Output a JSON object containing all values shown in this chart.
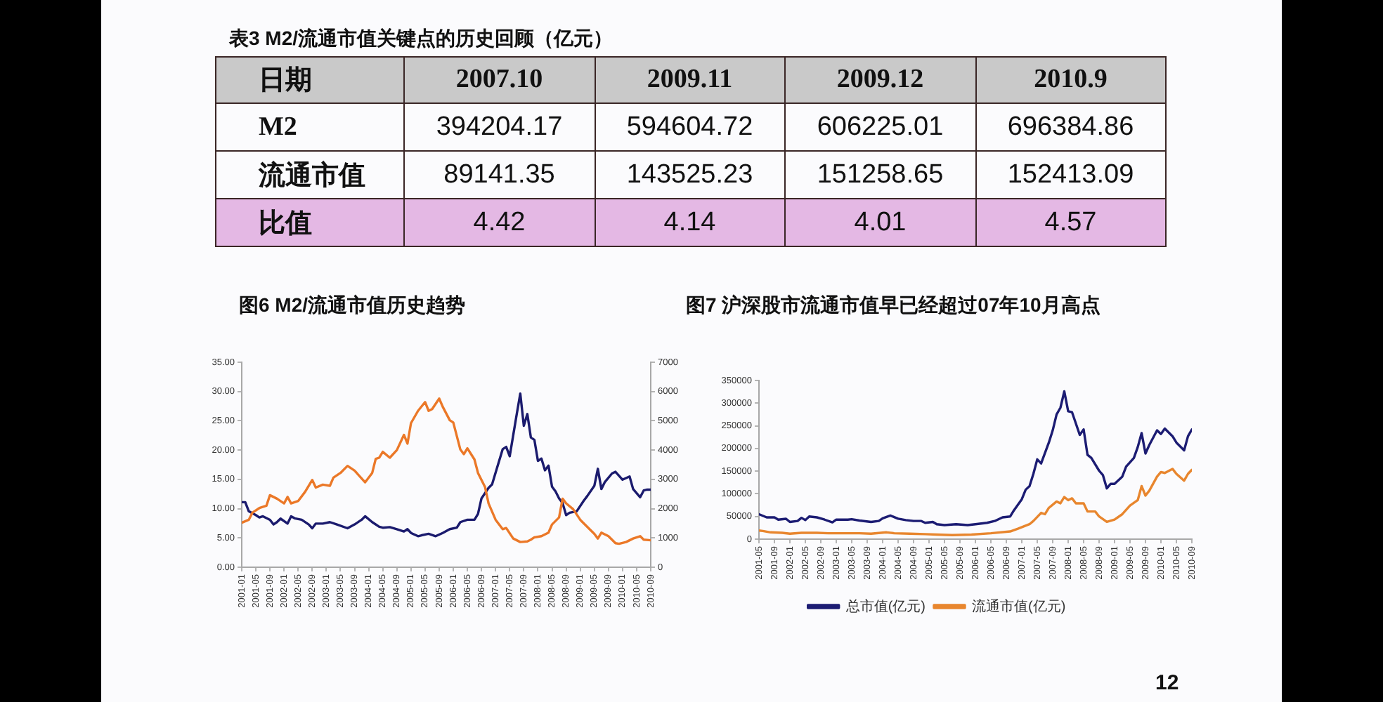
{
  "chart_data": [
    {
      "type": "other",
      "title": "表3 M2/流通市值关键点的历史回顾（亿元）",
      "xlabel": "日期",
      "categories": [
        "2007.10",
        "2009.11",
        "2009.12",
        "2010.9"
      ],
      "data_labels": true,
      "series": [
        {
          "name": "M2",
          "values": [
            394204.17,
            594604.72,
            606225.01,
            696384.86
          ]
        },
        {
          "name": "流通市值",
          "values": [
            89141.35,
            143525.23,
            151258.65,
            152413.09
          ]
        },
        {
          "name": "比值",
          "color": "#e4b8e4",
          "values": [
            4.42,
            4.14,
            4.01,
            4.57
          ]
        }
      ]
    },
    {
      "type": "line",
      "title": "图6 M2/流通市值历史趋势",
      "xlim": [
        "2001-01",
        "2010-09"
      ],
      "xticks": [
        "2001-01",
        "2001-05",
        "2001-09",
        "2002-01",
        "2002-05",
        "2002-09",
        "2003-01",
        "2003-05",
        "2003-09",
        "2004-01",
        "2004-05",
        "2004-09",
        "2005-01",
        "2005-05",
        "2005-09",
        "2006-01",
        "2006-05",
        "2006-09",
        "2007-01",
        "2007-05",
        "2007-09",
        "2008-01",
        "2008-05",
        "2008-09",
        "2009-01",
        "2009-05",
        "2009-09",
        "2010-01",
        "2010-05",
        "2010-09"
      ],
      "ylim": [
        0,
        35
      ],
      "yticks": [
        {
          "value": 0,
          "label": "0.00"
        },
        {
          "value": 5,
          "label": "5.00"
        },
        {
          "value": 10,
          "label": "10.00"
        },
        {
          "value": 15,
          "label": "15.00"
        },
        {
          "value": 20,
          "label": "20.00"
        },
        {
          "value": 25,
          "label": "25.00"
        },
        {
          "value": 30,
          "label": "30.00"
        },
        {
          "value": 35,
          "label": "35.00"
        }
      ],
      "y2lim": [
        0,
        7000
      ],
      "y2ticks": [
        0,
        1000,
        2000,
        3000,
        4000,
        5000,
        6000,
        7000
      ],
      "series": [
        {
          "color": "#eb7828",
          "x": [
            "2001-01",
            "2001-03",
            "2001-04",
            "2001-06",
            "2001-08",
            "2001-09",
            "2001-11",
            "2002-01",
            "2002-02",
            "2002-03",
            "2002-05",
            "2002-07",
            "2002-09",
            "2002-10",
            "2002-12",
            "2003-02",
            "2003-03",
            "2003-05",
            "2003-07",
            "2003-09",
            "2003-12",
            "2004-02",
            "2004-03",
            "2004-04",
            "2004-05",
            "2004-07",
            "2004-09",
            "2004-11",
            "2004-12",
            "2005-01",
            "2005-03",
            "2005-05",
            "2005-06",
            "2005-07",
            "2005-09",
            "2005-10",
            "2005-12",
            "2006-01",
            "2006-03",
            "2006-04",
            "2006-05",
            "2006-07",
            "2006-08",
            "2006-10",
            "2006-11",
            "2007-01",
            "2007-03",
            "2007-04",
            "2007-06",
            "2007-08",
            "2007-10",
            "2007-11",
            "2007-12",
            "2008-02",
            "2008-04",
            "2008-05",
            "2008-07",
            "2008-08",
            "2008-09",
            "2008-11",
            "2009-01",
            "2009-03",
            "2009-05",
            "2009-06",
            "2009-07",
            "2009-09",
            "2009-11",
            "2009-12",
            "2010-02",
            "2010-04",
            "2010-06",
            "2010-07",
            "2010-09"
          ],
          "values": [
            7.6,
            8.1,
            9.3,
            10.1,
            10.5,
            12.3,
            11.7,
            10.9,
            12.0,
            10.9,
            11.3,
            12.9,
            14.9,
            13.6,
            14.1,
            13.9,
            15.3,
            16.1,
            17.3,
            16.5,
            14.5,
            16.1,
            18.5,
            18.7,
            19.7,
            18.7,
            20.0,
            22.6,
            21.1,
            24.6,
            26.7,
            28.2,
            26.7,
            27.0,
            28.8,
            27.4,
            25.1,
            24.7,
            20.1,
            19.3,
            20.3,
            18.4,
            16.1,
            13.7,
            10.9,
            8.1,
            6.5,
            6.7,
            4.9,
            4.3,
            4.4,
            4.7,
            5.1,
            5.3,
            5.9,
            7.3,
            8.5,
            11.7,
            10.9,
            9.9,
            8.1,
            6.9,
            5.7,
            4.9,
            5.9,
            5.3,
            4.1,
            4.0,
            4.3,
            4.9,
            5.3,
            4.7,
            4.6
          ]
        },
        {
          "color": "#1b1b6e",
          "axis": "y2",
          "x": [
            "2001-01",
            "2001-02",
            "2001-03",
            "2001-05",
            "2001-06",
            "2001-07",
            "2001-09",
            "2001-10",
            "2001-11",
            "2001-12",
            "2002-02",
            "2002-03",
            "2002-04",
            "2002-06",
            "2002-08",
            "2002-09",
            "2002-10",
            "2002-12",
            "2003-02",
            "2003-04",
            "2003-07",
            "2003-09",
            "2003-11",
            "2003-12",
            "2004-02",
            "2004-04",
            "2004-05",
            "2004-07",
            "2004-09",
            "2004-11",
            "2004-12",
            "2005-01",
            "2005-03",
            "2005-04",
            "2005-06",
            "2005-08",
            "2005-10",
            "2005-12",
            "2006-02",
            "2006-03",
            "2006-05",
            "2006-07",
            "2006-08",
            "2006-09",
            "2006-11",
            "2006-12",
            "2007-01",
            "2007-03",
            "2007-04",
            "2007-05",
            "2007-06",
            "2007-07",
            "2007-08",
            "2007-09",
            "2007-10",
            "2007-11",
            "2007-12",
            "2008-01",
            "2008-02",
            "2008-03",
            "2008-04",
            "2008-05",
            "2008-06",
            "2008-07",
            "2008-08",
            "2008-09",
            "2008-10",
            "2008-12",
            "2009-02",
            "2009-03",
            "2009-05",
            "2009-06",
            "2009-07",
            "2009-08",
            "2009-10",
            "2009-11",
            "2010-01",
            "2010-03",
            "2010-04",
            "2010-06",
            "2010-07",
            "2010-08",
            "2010-09"
          ],
          "values": [
            2220,
            2220,
            1910,
            1780,
            1700,
            1740,
            1620,
            1460,
            1540,
            1660,
            1490,
            1740,
            1670,
            1620,
            1460,
            1330,
            1490,
            1490,
            1540,
            1460,
            1330,
            1460,
            1620,
            1740,
            1540,
            1380,
            1350,
            1370,
            1300,
            1220,
            1300,
            1170,
            1060,
            1090,
            1140,
            1060,
            1170,
            1300,
            1350,
            1540,
            1620,
            1620,
            1820,
            2350,
            2710,
            2830,
            3230,
            4030,
            4110,
            3790,
            4510,
            5230,
            5930,
            4830,
            5230,
            4430,
            4350,
            3630,
            3710,
            3310,
            3470,
            2750,
            2590,
            2350,
            2190,
            1780,
            1860,
            1910,
            2270,
            2430,
            2780,
            3360,
            2670,
            2910,
            3200,
            3260,
            2990,
            3100,
            2670,
            2390,
            2620,
            2650,
            2650
          ]
        }
      ]
    },
    {
      "type": "line",
      "title": "图7 沪深股市流通市值早已经超过07年10月高点",
      "legend": "bottom",
      "annotations": [
        "12"
      ],
      "xlim": [
        "2001-05",
        "2010-09"
      ],
      "xticks": [
        "2001-05",
        "2001-09",
        "2002-01",
        "2002-05",
        "2002-09",
        "2003-01",
        "2003-05",
        "2003-09",
        "2004-01",
        "2004-05",
        "2004-09",
        "2005-01",
        "2005-05",
        "2005-09",
        "2006-01",
        "2006-05",
        "2006-09",
        "2007-01",
        "2007-05",
        "2007-09",
        "2008-01",
        "2008-05",
        "2008-09",
        "2009-01",
        "2009-05",
        "2009-09",
        "2010-01",
        "2010-05",
        "2010-09"
      ],
      "ylim": [
        0,
        350000
      ],
      "yticks": [
        0,
        50000,
        100000,
        150000,
        200000,
        250000,
        300000,
        350000
      ],
      "series": [
        {
          "name": "总市值(亿元)",
          "color": "#1c1c73",
          "x": [
            "2001-05",
            "2001-07",
            "2001-09",
            "2001-10",
            "2001-12",
            "2002-01",
            "2002-03",
            "2002-04",
            "2002-05",
            "2002-06",
            "2002-08",
            "2002-10",
            "2002-12",
            "2003-01",
            "2003-04",
            "2003-05",
            "2003-07",
            "2003-10",
            "2003-12",
            "2004-01",
            "2004-03",
            "2004-05",
            "2004-07",
            "2004-09",
            "2004-11",
            "2004-12",
            "2005-02",
            "2005-03",
            "2005-05",
            "2005-08",
            "2005-11",
            "2006-01",
            "2006-04",
            "2006-06",
            "2006-08",
            "2006-10",
            "2006-11",
            "2007-01",
            "2007-02",
            "2007-03",
            "2007-04",
            "2007-05",
            "2007-06",
            "2007-08",
            "2007-09",
            "2007-10",
            "2007-11",
            "2007-12",
            "2008-01",
            "2008-02",
            "2008-04",
            "2008-05",
            "2008-06",
            "2008-07",
            "2008-09",
            "2008-10",
            "2008-11",
            "2008-12",
            "2009-01",
            "2009-03",
            "2009-04",
            "2009-06",
            "2009-07",
            "2009-08",
            "2009-09",
            "2009-10",
            "2009-12",
            "2010-01",
            "2010-02",
            "2010-04",
            "2010-05",
            "2010-07",
            "2010-08",
            "2010-09"
          ],
          "values": [
            55000,
            48000,
            48000,
            43000,
            45000,
            38000,
            40000,
            47000,
            42000,
            50000,
            48000,
            43000,
            37000,
            43000,
            43000,
            44000,
            41000,
            38000,
            40000,
            46000,
            52000,
            45000,
            42000,
            40000,
            40000,
            36000,
            38000,
            33000,
            31000,
            33000,
            31000,
            33000,
            36000,
            40000,
            48000,
            50000,
            64000,
            88000,
            109000,
            117000,
            144000,
            176000,
            167000,
            213000,
            240000,
            275000,
            290000,
            326000,
            282000,
            280000,
            230000,
            242000,
            186000,
            179000,
            151000,
            141000,
            112000,
            122000,
            122000,
            138000,
            160000,
            179000,
            203000,
            234000,
            189000,
            208000,
            240000,
            232000,
            244000,
            227000,
            213000,
            196000,
            227000,
            242000
          ]
        },
        {
          "name": "流通市值(亿元)",
          "color": "#e8862e",
          "x": [
            "2001-05",
            "2001-06",
            "2001-08",
            "2001-11",
            "2002-01",
            "2002-04",
            "2002-08",
            "2002-11",
            "2003-03",
            "2003-07",
            "2003-10",
            "2004-02",
            "2004-04",
            "2004-08",
            "2004-12",
            "2005-03",
            "2005-07",
            "2005-12",
            "2006-05",
            "2006-10",
            "2006-12",
            "2007-03",
            "2007-04",
            "2007-06",
            "2007-07",
            "2007-08",
            "2007-10",
            "2007-11",
            "2007-12",
            "2008-01",
            "2008-02",
            "2008-03",
            "2008-05",
            "2008-06",
            "2008-08",
            "2008-09",
            "2008-11",
            "2009-01",
            "2009-03",
            "2009-05",
            "2009-07",
            "2009-08",
            "2009-09",
            "2009-10",
            "2009-12",
            "2010-01",
            "2010-02",
            "2010-04",
            "2010-05",
            "2010-07",
            "2010-08",
            "2010-09"
          ],
          "values": [
            19000,
            18000,
            15000,
            14000,
            12000,
            14000,
            14000,
            13000,
            13000,
            13000,
            12000,
            15000,
            13000,
            12000,
            11000,
            10000,
            9000,
            10000,
            13000,
            17000,
            23000,
            33000,
            40000,
            58000,
            55000,
            69000,
            83000,
            79000,
            93000,
            86000,
            90000,
            79000,
            79000,
            61000,
            61000,
            50000,
            38000,
            43000,
            55000,
            74000,
            86000,
            117000,
            96000,
            107000,
            138000,
            148000,
            146000,
            155000,
            144000,
            129000,
            144000,
            153000
          ]
        }
      ]
    }
  ]
}
